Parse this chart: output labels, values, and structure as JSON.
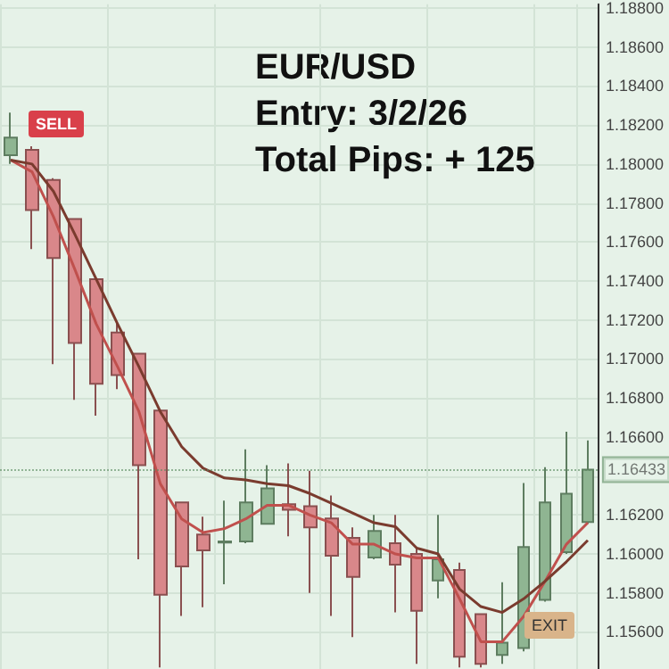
{
  "chart_data": {
    "type": "candlestick",
    "title": "EUR/USD",
    "subtitle": "Entry: 3/2/26",
    "annotations": [
      "Total Pips: + 125",
      "SELL",
      "EXIT"
    ],
    "categories": [
      null,
      null,
      null,
      null,
      null,
      null,
      null,
      null,
      null,
      null,
      null,
      null,
      null,
      null,
      null,
      null,
      null,
      null,
      null,
      null,
      null,
      null,
      null,
      null,
      null,
      null,
      null,
      null
    ],
    "ohlc": [
      [
        1.18045,
        1.18264,
        1.18,
        1.18136
      ],
      [
        1.18073,
        1.18091,
        1.17564,
        1.17764
      ],
      [
        1.17918,
        1.17927,
        1.16973,
        1.17518
      ],
      [
        1.17718,
        1.17718,
        1.16791,
        1.17082
      ],
      [
        1.17409,
        1.17409,
        1.16709,
        1.16873
      ],
      [
        1.17136,
        1.17182,
        1.16845,
        1.16918
      ],
      [
        1.17027,
        1.17027,
        1.15973,
        1.16455
      ],
      [
        1.16736,
        1.16736,
        1.15418,
        1.15791
      ],
      [
        1.16264,
        1.16264,
        1.15682,
        1.15936
      ],
      [
        1.161,
        1.16191,
        1.15727,
        1.16018
      ],
      [
        1.16059,
        1.16273,
        1.15845,
        1.16064
      ],
      [
        1.16064,
        1.16536,
        1.16055,
        1.16264
      ],
      [
        1.16155,
        1.16455,
        1.16155,
        1.16336
      ],
      [
        1.16255,
        1.16464,
        1.16091,
        1.16227
      ],
      [
        1.16245,
        1.16427,
        1.158,
        1.16136
      ],
      [
        1.16182,
        1.163,
        1.15682,
        1.15991
      ],
      [
        1.16082,
        1.16136,
        1.15573,
        1.15882
      ],
      [
        1.15982,
        1.162,
        1.15973,
        1.16118
      ],
      [
        1.16055,
        1.162,
        1.157,
        1.15945
      ],
      [
        1.16,
        1.16036,
        1.15436,
        1.15709
      ],
      [
        1.15864,
        1.162,
        1.15773,
        1.15973
      ],
      [
        1.15918,
        1.15955,
        1.15418,
        1.15473
      ],
      [
        1.15691,
        1.15691,
        1.15418,
        1.15436
      ],
      [
        1.15482,
        1.15855,
        1.15436,
        1.15545
      ],
      [
        1.15518,
        1.16364,
        1.155,
        1.16036
      ],
      [
        1.15764,
        1.16445,
        1.15755,
        1.16264
      ],
      [
        1.16009,
        1.16627,
        1.16,
        1.16309
      ],
      [
        1.16164,
        1.16582,
        1.16155,
        1.16433
      ]
    ],
    "series": [
      {
        "type": "line",
        "color": "#c0504d",
        "values": [
          1.1802,
          1.1796,
          1.1773,
          1.1746,
          1.1718,
          1.1696,
          1.1673,
          1.1636,
          1.1618,
          1.1611,
          1.1613,
          1.1618,
          1.1625,
          1.1625,
          1.162,
          1.1616,
          1.1605,
          1.1605,
          1.16,
          1.1598,
          1.1598,
          1.1577,
          1.1555,
          1.1555,
          1.1568,
          1.1586,
          1.1605,
          1.1616
        ]
      },
      {
        "type": "line",
        "color": "#7a3b2e",
        "values": [
          1.1802,
          1.18,
          1.1786,
          1.1764,
          1.1741,
          1.1718,
          1.1696,
          1.1673,
          1.1655,
          1.1644,
          1.1639,
          1.1638,
          1.1636,
          1.1635,
          1.1631,
          1.1626,
          1.1621,
          1.1616,
          1.1614,
          1.1603,
          1.16,
          1.1582,
          1.1573,
          1.157,
          1.1577,
          1.1586,
          1.1596,
          1.1607
        ]
      }
    ],
    "ylim": [
      1.1541,
      1.1882
    ],
    "yticks": [
      {
        "value": 1.156,
        "label": "1.15600"
      },
      {
        "value": 1.158,
        "label": "1.15800"
      },
      {
        "value": 1.16,
        "label": "1.16000"
      },
      {
        "value": 1.162,
        "label": "1.16200"
      },
      {
        "value": 1.164,
        "label": null
      },
      {
        "value": 1.166,
        "label": "1.16600"
      },
      {
        "value": 1.168,
        "label": "1.16800"
      },
      {
        "value": 1.17,
        "label": "1.17000"
      },
      {
        "value": 1.172,
        "label": "1.17200"
      },
      {
        "value": 1.174,
        "label": "1.17400"
      },
      {
        "value": 1.176,
        "label": "1.17600"
      },
      {
        "value": 1.178,
        "label": "1.17800"
      },
      {
        "value": 1.18,
        "label": "1.18000"
      },
      {
        "value": 1.182,
        "label": "1.18200"
      },
      {
        "value": 1.184,
        "label": "1.18400"
      },
      {
        "value": 1.186,
        "label": "1.18600"
      },
      {
        "value": 1.188,
        "label": "1.18800"
      }
    ],
    "ref_lines": [
      {
        "axis": "y",
        "value": 1.16433,
        "label": "1.16433",
        "color": "#5a8a5f"
      }
    ],
    "grid": true,
    "marker": "none",
    "line_style": "solid",
    "tick_labels": "y"
  }
}
